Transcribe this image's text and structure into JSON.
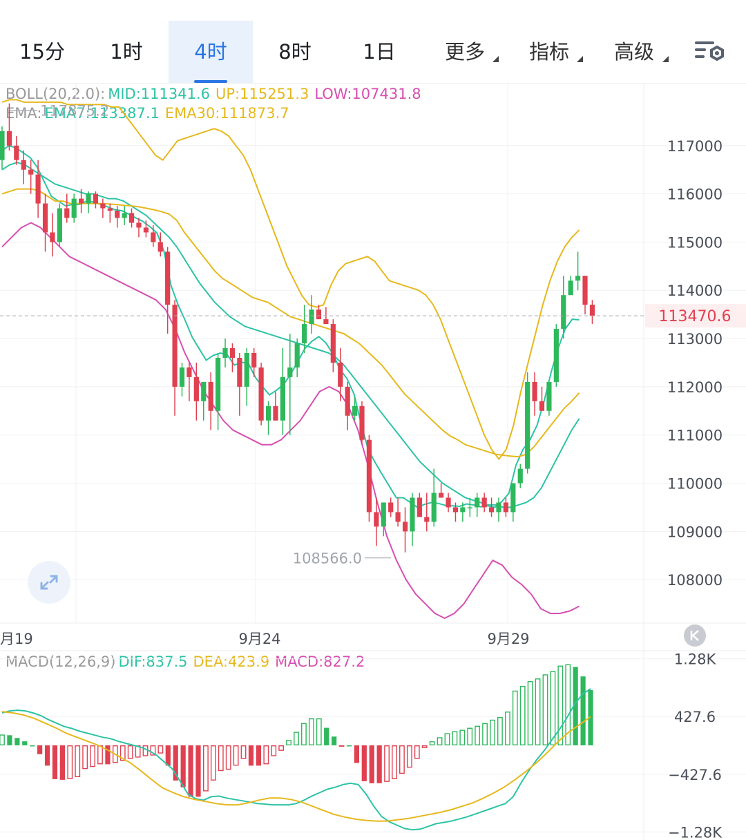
{
  "tabs": [
    {
      "label": "15分",
      "active": false,
      "dropdown": false
    },
    {
      "label": "1时",
      "active": false,
      "dropdown": false
    },
    {
      "label": "4时",
      "active": true,
      "dropdown": false
    },
    {
      "label": "8时",
      "active": false,
      "dropdown": false
    },
    {
      "label": "1日",
      "active": false,
      "dropdown": false
    },
    {
      "label": "更多",
      "active": false,
      "dropdown": true
    },
    {
      "label": "指标",
      "active": false,
      "dropdown": true
    },
    {
      "label": "高级",
      "active": false,
      "dropdown": true
    }
  ],
  "settings_icon": "chart-settings-icon",
  "boll": {
    "label": "BOLL(20,2.0):",
    "mid": "MID:111341.6",
    "up": "UP:115251.3",
    "low": "LOW:107431.8"
  },
  "ema": {
    "label": "EMA:",
    "ema7": "EMA7:113387.1",
    "ema30": "EMA30:111873.7"
  },
  "macd": {
    "label": "MACD(12,26,9)",
    "dif": "DIF:837.5",
    "dea": "DEA:423.9",
    "macd": "MACD:827.2"
  },
  "colors": {
    "up": "#2eb85c",
    "down": "#e04050",
    "boll_mid": "#2dc3a5",
    "boll_band": "#e6b81c",
    "low_band": "#d64fb0",
    "ema7": "#2dc3a5",
    "ema30": "#e6b81c",
    "accent": "#2a74e4",
    "last_price": "#e04050"
  },
  "expand_icon": "expand-icon",
  "scroll_icon": "scroll-to-latest-icon",
  "chart_data": [
    {
      "type": "candlestick",
      "title": "",
      "y_ticks": [
        117000,
        116000,
        115000,
        114000,
        113000,
        112000,
        111000,
        110000,
        109000,
        108000
      ],
      "ylim": [
        107100,
        118300
      ],
      "x_labels": [
        "月19",
        "9月24",
        "9月29"
      ],
      "last_price": 113470.6,
      "last_price_label": "113470.6",
      "high_marker": {
        "value": 117875.2,
        "label": "117875.2"
      },
      "low_marker": {
        "value": 108566.0,
        "label": "108566.0"
      },
      "candles": [
        [
          116700,
          117400,
          116500,
          117300
        ],
        [
          117300,
          117875,
          116900,
          117000
        ],
        [
          117000,
          117200,
          116600,
          116700
        ],
        [
          116700,
          116900,
          116200,
          116500
        ],
        [
          116500,
          116700,
          116000,
          116400
        ],
        [
          116400,
          116700,
          115500,
          115800
        ],
        [
          115800,
          116000,
          114800,
          115200
        ],
        [
          115200,
          115600,
          114700,
          115000
        ],
        [
          115000,
          115800,
          114900,
          115700
        ],
        [
          115700,
          116000,
          115400,
          115500
        ],
        [
          115500,
          116000,
          115400,
          115900
        ],
        [
          115900,
          116100,
          115600,
          115800
        ],
        [
          115800,
          116050,
          115600,
          116000
        ],
        [
          116000,
          116050,
          115700,
          115800
        ],
        [
          115800,
          115900,
          115500,
          115700
        ],
        [
          115700,
          115800,
          115400,
          115650
        ],
        [
          115650,
          115750,
          115300,
          115500
        ],
        [
          115500,
          115750,
          115350,
          115600
        ],
        [
          115600,
          115700,
          115300,
          115400
        ],
        [
          115400,
          115500,
          115100,
          115300
        ],
        [
          115300,
          115450,
          115100,
          115200
        ],
        [
          115200,
          115350,
          114900,
          115000
        ],
        [
          115000,
          115200,
          114700,
          114800
        ],
        [
          114800,
          114900,
          113100,
          113700
        ],
        [
          113700,
          113800,
          111400,
          112000
        ],
        [
          112000,
          112500,
          111800,
          112400
        ],
        [
          112400,
          112500,
          111700,
          112200
        ],
        [
          112200,
          112500,
          111300,
          111700
        ],
        [
          111700,
          112100,
          111300,
          112100
        ],
        [
          112100,
          112300,
          111100,
          111500
        ],
        [
          111500,
          112700,
          111100,
          112600
        ],
        [
          112600,
          113000,
          112400,
          112800
        ],
        [
          112800,
          112900,
          112300,
          112600
        ],
        [
          112600,
          112700,
          111400,
          112000
        ],
        [
          112000,
          112800,
          111600,
          112700
        ],
        [
          112700,
          112800,
          112200,
          112400
        ],
        [
          112400,
          112500,
          111200,
          111300
        ],
        [
          111300,
          111700,
          111000,
          111600
        ],
        [
          111600,
          111900,
          111300,
          111300
        ],
        [
          111300,
          112800,
          111000,
          112200
        ],
        [
          112200,
          113100,
          111000,
          112400
        ],
        [
          112400,
          113000,
          112200,
          112900
        ],
        [
          112900,
          113700,
          112700,
          113300
        ],
        [
          113300,
          113900,
          113100,
          113600
        ],
        [
          113600,
          113700,
          113400,
          113400
        ],
        [
          113400,
          113650,
          113300,
          113300
        ],
        [
          113300,
          113400,
          112300,
          112500
        ],
        [
          112500,
          112800,
          111700,
          112000
        ],
        [
          112000,
          112100,
          111100,
          111400
        ],
        [
          111400,
          111800,
          111300,
          111600
        ],
        [
          111600,
          111700,
          110800,
          110900
        ],
        [
          110900,
          111000,
          109200,
          109400
        ],
        [
          109400,
          109700,
          108700,
          109100
        ],
        [
          109100,
          109500,
          108900,
          109600
        ],
        [
          109600,
          109700,
          109300,
          109400
        ],
        [
          109400,
          109700,
          109100,
          109200
        ],
        [
          109200,
          109500,
          108566,
          109000
        ],
        [
          109000,
          109800,
          108700,
          109700
        ],
        [
          109700,
          109800,
          109300,
          109300
        ],
        [
          109300,
          109800,
          109000,
          109200
        ],
        [
          109200,
          110300,
          109100,
          109800
        ],
        [
          109800,
          110000,
          109700,
          109700
        ],
        [
          109700,
          109800,
          109400,
          109500
        ],
        [
          109500,
          109600,
          109200,
          109400
        ],
        [
          109400,
          109600,
          109200,
          109500
        ],
        [
          109500,
          109700,
          109300,
          109500
        ],
        [
          109500,
          109800,
          109300,
          109700
        ],
        [
          109700,
          109800,
          109400,
          109500
        ],
        [
          109500,
          109700,
          109300,
          109400
        ],
        [
          109400,
          109700,
          109200,
          109600
        ],
        [
          109600,
          109700,
          109300,
          109400
        ],
        [
          109400,
          110000,
          109200,
          110000
        ],
        [
          110000,
          110400,
          109900,
          110300
        ],
        [
          110300,
          112300,
          110200,
          112100
        ],
        [
          112100,
          112300,
          111400,
          111700
        ],
        [
          111700,
          112000,
          111500,
          111500
        ],
        [
          111500,
          112100,
          111400,
          112100
        ],
        [
          112100,
          113300,
          112000,
          113200
        ],
        [
          113200,
          114300,
          113000,
          113900
        ],
        [
          113900,
          114300,
          113900,
          114200
        ],
        [
          114200,
          114800,
          114000,
          114300
        ],
        [
          114300,
          114300,
          113500,
          113700
        ],
        [
          113700,
          113800,
          113300,
          113470.6
        ]
      ],
      "boll_up": [
        117900,
        117950,
        117950,
        117900,
        117900,
        117900,
        117900,
        117900,
        117900,
        117850,
        117850,
        117850,
        117850,
        117850,
        117850,
        117800,
        117800,
        117600,
        117400,
        117200,
        117000,
        116800,
        116700,
        116900,
        117100,
        117150,
        117200,
        117250,
        117300,
        117350,
        117300,
        117200,
        117000,
        116800,
        116500,
        116100,
        115700,
        115300,
        114900,
        114500,
        114200,
        113900,
        113700,
        113650,
        113700,
        114100,
        114400,
        114550,
        114600,
        114650,
        114700,
        114600,
        114400,
        114200,
        114150,
        114100,
        114050,
        114000,
        113900,
        113700,
        113400,
        113000,
        112600,
        112200,
        111800,
        111400,
        111000,
        110700,
        110500,
        110700,
        111200,
        111900,
        112500,
        113100,
        113700,
        114200,
        114600,
        114900,
        115100,
        115251
      ],
      "boll_mid": [
        116500,
        116600,
        116650,
        116600,
        116500,
        116400,
        116300,
        116200,
        116150,
        116100,
        116050,
        116000,
        116000,
        115950,
        115900,
        115900,
        115850,
        115750,
        115650,
        115550,
        115400,
        115250,
        115100,
        114900,
        114650,
        114400,
        114150,
        113950,
        113750,
        113600,
        113450,
        113350,
        113250,
        113200,
        113150,
        113100,
        113050,
        113000,
        112950,
        112900,
        112850,
        112800,
        112750,
        112700,
        112600,
        112450,
        112250,
        112050,
        111850,
        111650,
        111450,
        111250,
        111050,
        110850,
        110650,
        110450,
        110300,
        110150,
        110000,
        109900,
        109800,
        109700,
        109650,
        109600,
        109550,
        109550,
        109500,
        109500,
        109550,
        109600,
        109700,
        109900,
        110200,
        110500,
        110800,
        111100,
        111341
      ],
      "boll_low": [
        114900,
        115100,
        115300,
        115400,
        115300,
        115100,
        114900,
        114700,
        114600,
        114500,
        114400,
        114300,
        114200,
        114100,
        114000,
        113900,
        113800,
        113600,
        113200,
        112700,
        112300,
        111900,
        111600,
        111300,
        111100,
        111000,
        110900,
        110800,
        110800,
        110900,
        111100,
        111300,
        111600,
        111900,
        112000,
        111900,
        111600,
        111100,
        110400,
        109600,
        108900,
        108400,
        108000,
        107700,
        107500,
        107300,
        107200,
        107300,
        107500,
        107800,
        108100,
        108400,
        108300,
        108050,
        107900,
        107700,
        107400,
        107300,
        107300,
        107350,
        107450
      ],
      "ema7": [
        116900,
        117000,
        116950,
        116850,
        116750,
        116550,
        116250,
        115950,
        115850,
        115750,
        115780,
        115780,
        115850,
        115830,
        115780,
        115730,
        115670,
        115650,
        115580,
        115500,
        115430,
        115320,
        115190,
        114810,
        114100,
        113700,
        113380,
        113030,
        112790,
        112550,
        112650,
        112700,
        112660,
        112450,
        112510,
        112480,
        112190,
        112000,
        111830,
        111930,
        112050,
        112260,
        112520,
        112790,
        112940,
        113040,
        112910,
        112680,
        112360,
        112170,
        111850,
        111240,
        110700,
        110430,
        110180,
        109940,
        109700,
        109700,
        109600,
        109500,
        109560,
        109600,
        109580,
        109540,
        109530,
        109520,
        109570,
        109550,
        109510,
        109530,
        109500,
        109620,
        109790,
        110370,
        110700,
        110900,
        111200,
        111700,
        112300,
        112800,
        113200,
        113400,
        113387
      ],
      "ema30": [
        116000,
        116050,
        116100,
        116100,
        116100,
        116050,
        115950,
        115850,
        115850,
        115800,
        115800,
        115800,
        115800,
        115800,
        115790,
        115780,
        115760,
        115750,
        115730,
        115700,
        115670,
        115630,
        115580,
        115450,
        115200,
        115000,
        114800,
        114600,
        114400,
        114250,
        114150,
        114050,
        113950,
        113850,
        113800,
        113750,
        113650,
        113550,
        113450,
        113400,
        113350,
        113300,
        113250,
        113200,
        113150,
        113100,
        113000,
        112900,
        112750,
        112600,
        112450,
        112250,
        112050,
        111850,
        111700,
        111550,
        111400,
        111250,
        111100,
        110980,
        110900,
        110800,
        110750,
        110700,
        110650,
        110600,
        110580,
        110560,
        110550,
        110600,
        110750,
        110950,
        111150,
        111350,
        111550,
        111700,
        111873
      ]
    },
    {
      "type": "bar",
      "title": "",
      "y_ticks_labels": [
        "1.28K",
        "427.6",
        "−427.6",
        "−1.28K"
      ],
      "y_ticks": [
        1280,
        427.6,
        -427.6,
        -1280
      ],
      "ylim": [
        -1400,
        1400
      ],
      "macd_hist": [
        160,
        150,
        110,
        60,
        0,
        -130,
        -300,
        -500,
        -510,
        -500,
        -470,
        -350,
        -320,
        -280,
        -280,
        -260,
        -230,
        -200,
        -180,
        -160,
        -150,
        -120,
        -300,
        -520,
        -620,
        -760,
        -760,
        -680,
        -520,
        -380,
        -360,
        -300,
        -200,
        -300,
        -300,
        -280,
        -160,
        -80,
        80,
        200,
        330,
        400,
        400,
        260,
        130,
        -10,
        0,
        -260,
        -530,
        -560,
        -560,
        -540,
        -500,
        -420,
        -330,
        -200,
        -40,
        60,
        120,
        180,
        210,
        230,
        260,
        290,
        330,
        380,
        420,
        500,
        810,
        880,
        950,
        990,
        1050,
        1100,
        1180,
        1200,
        1160,
        1020,
        820
      ],
      "dif": [
        480,
        510,
        520,
        510,
        480,
        440,
        380,
        330,
        280,
        250,
        210,
        180,
        150,
        120,
        100,
        60,
        30,
        0,
        -30,
        -80,
        -150,
        -250,
        -350,
        -530,
        -720,
        -790,
        -810,
        -760,
        -750,
        -780,
        -800,
        -820,
        -840,
        -860,
        -870,
        -880,
        -880,
        -880,
        -860,
        -810,
        -750,
        -700,
        -650,
        -620,
        -580,
        -560,
        -580,
        -720,
        -900,
        -1050,
        -1130,
        -1180,
        -1230,
        -1250,
        -1240,
        -1200,
        -1160,
        -1140,
        -1120,
        -1090,
        -1060,
        -1020,
        -980,
        -940,
        -900,
        -860,
        -760,
        -560,
        -380,
        -220,
        -80,
        80,
        240,
        420,
        620,
        760,
        838
      ],
      "dea": [
        500,
        480,
        450,
        400,
        330,
        260,
        180,
        120,
        60,
        0,
        -80,
        -170,
        -260,
        -380,
        -510,
        -630,
        -700,
        -760,
        -800,
        -830,
        -860,
        -880,
        -880,
        -850,
        -810,
        -780,
        -780,
        -800,
        -840,
        -900,
        -960,
        -1020,
        -1060,
        -1090,
        -1110,
        -1120,
        -1120,
        -1100,
        -1080,
        -1050,
        -1020,
        -990,
        -950,
        -900,
        -850,
        -780,
        -700,
        -610,
        -500,
        -380,
        -250,
        -100,
        60,
        200,
        310,
        424
      ]
    }
  ]
}
